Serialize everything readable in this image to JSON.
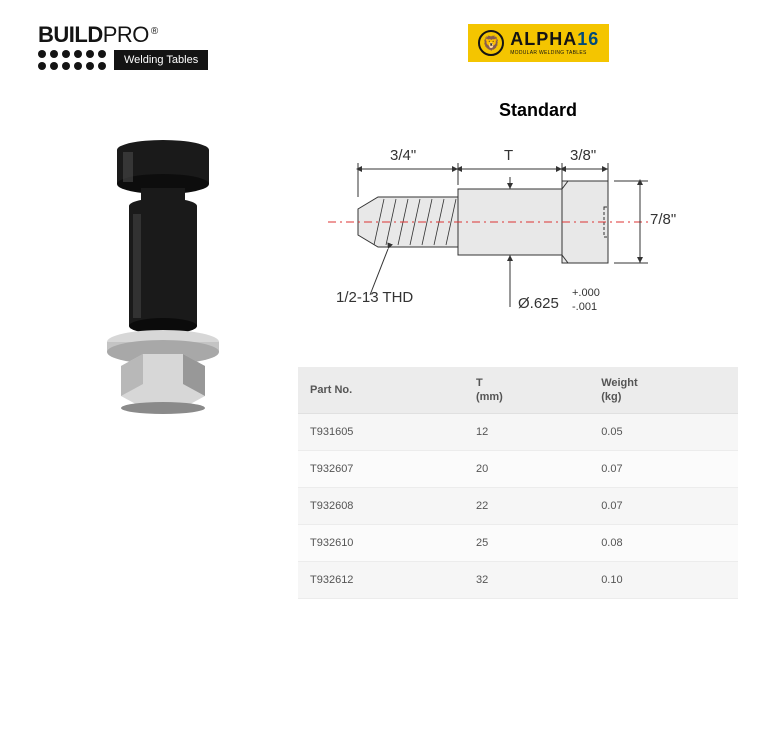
{
  "logos": {
    "buildpro": {
      "build": "BUILD",
      "pro": "PRO",
      "reg": "®",
      "tagline": "Welding Tables"
    },
    "alpha": {
      "main": "ALPHA",
      "num": "16",
      "sub": "MODULAR WELDING TABLES",
      "lion": "🦁"
    }
  },
  "diagram": {
    "title": "Standard",
    "dim_thread_len": "3/4\"",
    "dim_T": "T",
    "dim_head_len": "3/8\"",
    "dim_head_dia": "7/8\"",
    "thread_note": "1/2-13 THD",
    "shank_dia_label": "Ø.625",
    "shank_tol_plus": "+.000",
    "shank_tol_minus": "-.001",
    "colors": {
      "line": "#333333",
      "centerline": "#d33333",
      "fill_light": "#e8e8e8",
      "fill_dark": "#cfcfcf"
    }
  },
  "product_colors": {
    "black": "#1a1a1a",
    "steel": "#d7d7d7",
    "steel_dark": "#a8a8a8",
    "highlight": "#4a4a4a"
  },
  "table": {
    "headers": {
      "part": "Part No.",
      "t": "T",
      "t_unit": "(mm)",
      "weight": "Weight",
      "weight_unit": "(kg)"
    },
    "rows": [
      {
        "part": "T931605",
        "t": "12",
        "weight": "0.05"
      },
      {
        "part": "T932607",
        "t": "20",
        "weight": "0.07"
      },
      {
        "part": "T932608",
        "t": "22",
        "weight": "0.07"
      },
      {
        "part": "T932610",
        "t": "25",
        "weight": "0.08"
      },
      {
        "part": "T932612",
        "t": "32",
        "weight": "0.10"
      }
    ]
  }
}
